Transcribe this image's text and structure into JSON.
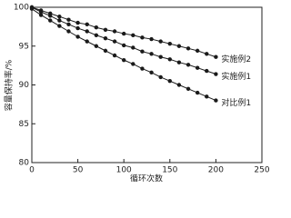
{
  "chart_data": {
    "type": "line",
    "x_label": "循环次数",
    "y_label": "容量保持率/%",
    "x": [
      0,
      10,
      20,
      30,
      40,
      50,
      60,
      70,
      80,
      90,
      100,
      110,
      120,
      130,
      140,
      150,
      160,
      170,
      180,
      190,
      200
    ],
    "series": [
      {
        "name": "实施例2",
        "color": "#1a1a1a",
        "values": [
          100,
          99.6,
          99.2,
          98.8,
          98.4,
          98.0,
          97.8,
          97.4,
          97.1,
          96.9,
          96.6,
          96.4,
          96.1,
          95.9,
          95.6,
          95.3,
          95.0,
          94.7,
          94.4,
          94.0,
          93.6
        ]
      },
      {
        "name": "实施例1",
        "color": "#1a1a1a",
        "values": [
          100,
          99.4,
          98.9,
          98.3,
          97.8,
          97.3,
          96.9,
          96.4,
          96.0,
          95.6,
          95.1,
          94.8,
          94.3,
          94.0,
          93.6,
          93.3,
          92.9,
          92.6,
          92.2,
          91.8,
          91.4
        ]
      },
      {
        "name": "对比例1",
        "color": "#1a1a1a",
        "values": [
          99.8,
          99.0,
          98.3,
          97.6,
          96.9,
          96.2,
          95.6,
          95.0,
          94.4,
          93.8,
          93.2,
          92.7,
          92.1,
          91.6,
          91.0,
          90.5,
          90.0,
          89.5,
          89.0,
          88.5,
          88.0
        ]
      }
    ],
    "xlim": [
      0,
      250
    ],
    "xticks": [
      0,
      50,
      100,
      150,
      200,
      250
    ],
    "ylim": [
      80,
      100
    ],
    "yticks": [
      80,
      85,
      90,
      95,
      100
    ]
  }
}
